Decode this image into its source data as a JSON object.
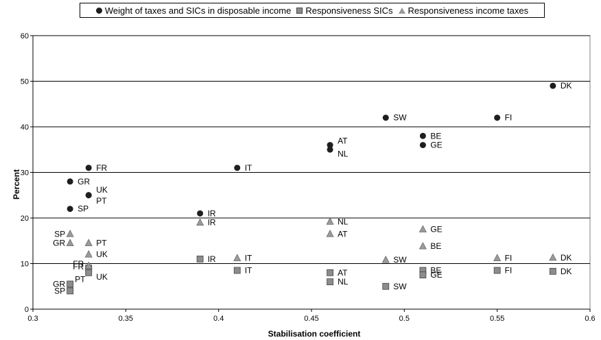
{
  "chart_data": {
    "type": "scatter",
    "xlabel": "Stabilisation coefficient",
    "ylabel": "Percent",
    "xlim": [
      0.3,
      0.6
    ],
    "ylim": [
      0,
      60
    ],
    "xticks": [
      "0.3",
      "0.35",
      "0.4",
      "0.45",
      "0.5",
      "0.55",
      "0.6"
    ],
    "yticks": [
      "0",
      "10",
      "20",
      "30",
      "40",
      "50",
      "60"
    ],
    "grid": "horizontal",
    "legend_position": "top",
    "series": [
      {
        "name": "Weight of taxes and SICs in disposable income",
        "marker": "circle",
        "color": "#1f1f1f",
        "points": [
          {
            "label": "DK",
            "x": 0.58,
            "y": 49
          },
          {
            "label": "FI",
            "x": 0.55,
            "y": 42
          },
          {
            "label": "SW",
            "x": 0.49,
            "y": 42
          },
          {
            "label": "BE",
            "x": 0.51,
            "y": 38
          },
          {
            "label": "GE",
            "x": 0.51,
            "y": 36
          },
          {
            "label": "AT",
            "x": 0.46,
            "y": 36
          },
          {
            "label": "NL",
            "x": 0.46,
            "y": 35
          },
          {
            "label": "IT",
            "x": 0.41,
            "y": 31
          },
          {
            "label": "FR",
            "x": 0.33,
            "y": 31
          },
          {
            "label": "GR",
            "x": 0.32,
            "y": 28
          },
          {
            "label": "UK",
            "x": 0.33,
            "y": 25
          },
          {
            "label": "PT",
            "x": 0.33,
            "y": 25
          },
          {
            "label": "SP",
            "x": 0.32,
            "y": 22
          },
          {
            "label": "IR",
            "x": 0.39,
            "y": 21
          }
        ]
      },
      {
        "name": "Responsiveness SICs",
        "marker": "square",
        "color": "#8c8c8c",
        "points": [
          {
            "label": "IR",
            "x": 0.39,
            "y": 11
          },
          {
            "label": "IT",
            "x": 0.41,
            "y": 8.5
          },
          {
            "label": "FR",
            "x": 0.33,
            "y": 9
          },
          {
            "label": "UK",
            "x": 0.33,
            "y": 8
          },
          {
            "label": "GR",
            "x": 0.32,
            "y": 5.5
          },
          {
            "label": "SP",
            "x": 0.32,
            "y": 4
          },
          {
            "label": "AT",
            "x": 0.46,
            "y": 8
          },
          {
            "label": "NL",
            "x": 0.46,
            "y": 6
          },
          {
            "label": "SW",
            "x": 0.49,
            "y": 5
          },
          {
            "label": "BE",
            "x": 0.51,
            "y": 8.5
          },
          {
            "label": "GE",
            "x": 0.51,
            "y": 7.5
          },
          {
            "label": "FI",
            "x": 0.55,
            "y": 8.5
          },
          {
            "label": "DK",
            "x": 0.58,
            "y": 8.3
          }
        ]
      },
      {
        "name": "Responsiveness income taxes",
        "marker": "triangle",
        "color": "#9a9a9a",
        "points": [
          {
            "label": "SP",
            "x": 0.32,
            "y": 16.5
          },
          {
            "label": "GR",
            "x": 0.32,
            "y": 14.5
          },
          {
            "label": "PT",
            "x": 0.33,
            "y": 14.5
          },
          {
            "label": "UK",
            "x": 0.33,
            "y": 12
          },
          {
            "label": "FR",
            "x": 0.33,
            "y": 9.5
          },
          {
            "label": "IR",
            "x": 0.39,
            "y": 19
          },
          {
            "label": "IT",
            "x": 0.41,
            "y": 11.2
          },
          {
            "label": "NL",
            "x": 0.46,
            "y": 19.2
          },
          {
            "label": "AT",
            "x": 0.46,
            "y": 16.5
          },
          {
            "label": "SW",
            "x": 0.49,
            "y": 10.8
          },
          {
            "label": "GE",
            "x": 0.51,
            "y": 17.5
          },
          {
            "label": "BE",
            "x": 0.51,
            "y": 13.8
          },
          {
            "label": "FI",
            "x": 0.55,
            "y": 11.2
          },
          {
            "label": "DK",
            "x": 0.58,
            "y": 11.3
          }
        ]
      }
    ]
  }
}
